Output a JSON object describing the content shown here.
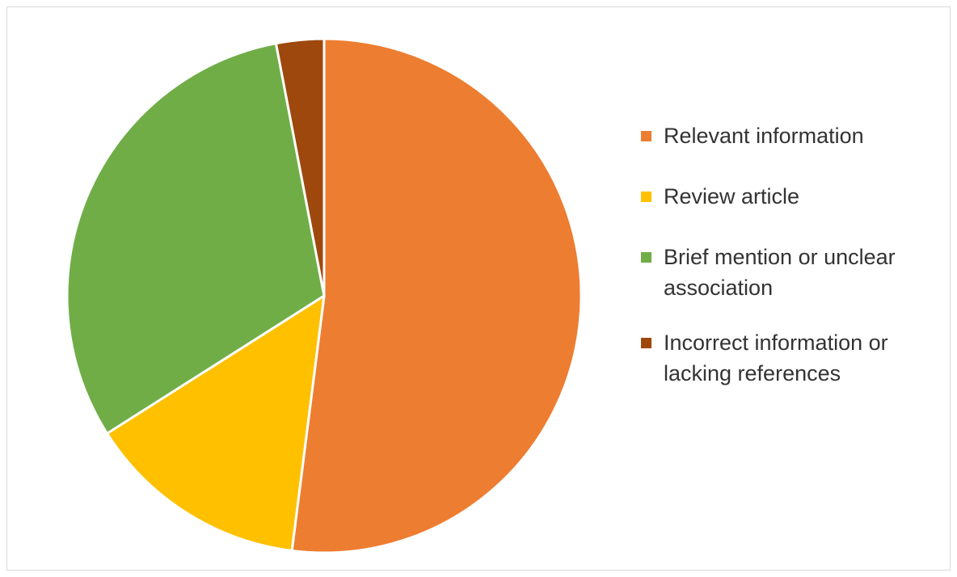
{
  "chart_data": {
    "type": "pie",
    "title": "",
    "categories": [
      "Relevant information",
      "Review article",
      "Brief mention or unclear association",
      "Incorrect information or lacking references"
    ],
    "values": [
      52,
      14,
      31,
      3
    ],
    "colors": [
      "#ED7D31",
      "#FFC000",
      "#70AD47",
      "#9E480E"
    ],
    "legend_position": "right",
    "data_labels": false
  },
  "legend": {
    "items": [
      {
        "label": "Relevant information",
        "color": "#ED7D31"
      },
      {
        "label": "Review article",
        "color": "#FFC000"
      },
      {
        "label": "Brief mention or unclear association",
        "color": "#70AD47"
      },
      {
        "label": "Incorrect information or lacking references",
        "color": "#9E480E"
      }
    ]
  }
}
